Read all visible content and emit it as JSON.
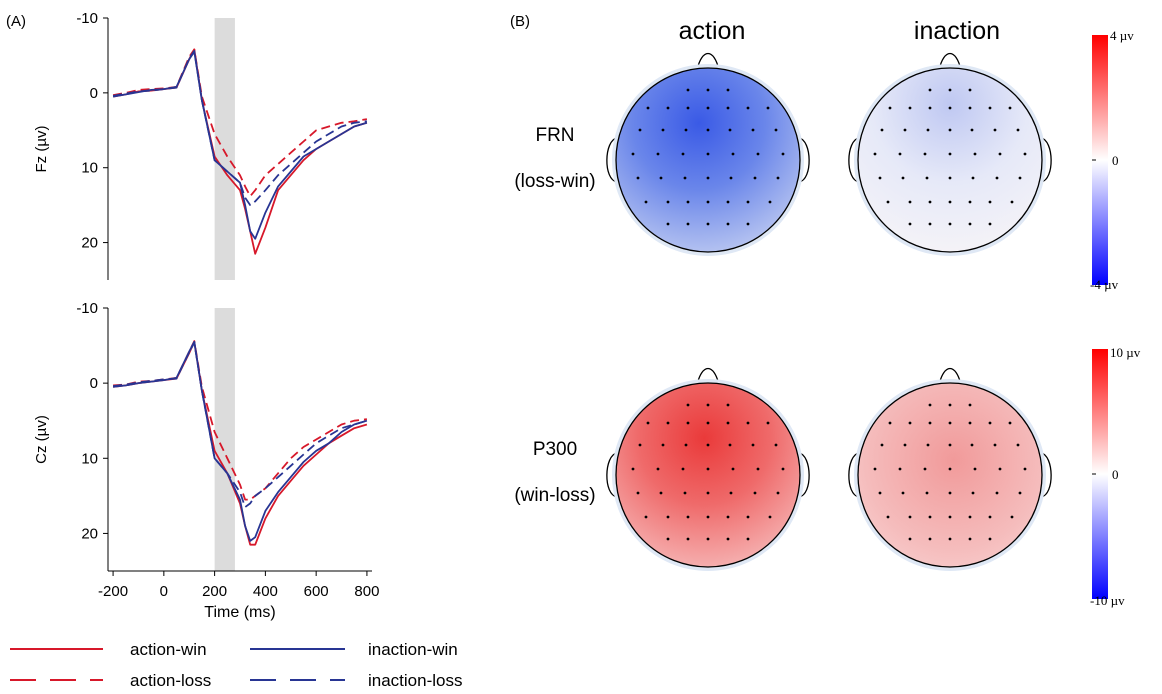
{
  "panel_labels": {
    "a": "(A)",
    "b": "(B)"
  },
  "colors": {
    "action": "#d7182a",
    "inaction": "#283593",
    "shade": "#dcdcdc"
  },
  "chart_data": [
    {
      "type": "line",
      "ylabel": "Fz (µv)",
      "xlim": [
        -220,
        820
      ],
      "ylim": [
        -10,
        25
      ],
      "y_inverted": true,
      "yticks": [
        -10,
        0,
        10,
        20
      ],
      "shaded_interval": [
        200,
        280
      ],
      "series": [
        {
          "name": "action-win",
          "color": "#d7182a",
          "dash": "solid",
          "x": [
            -200,
            -150,
            -100,
            -50,
            0,
            50,
            100,
            120,
            150,
            200,
            250,
            300,
            320,
            340,
            360,
            400,
            450,
            500,
            550,
            600,
            650,
            700,
            750,
            800
          ],
          "y": [
            0.5,
            0.2,
            -0.2,
            -0.3,
            -0.5,
            -0.7,
            -4.5,
            -5.8,
            1,
            8.5,
            11,
            13,
            15.5,
            18.5,
            21.5,
            18,
            13,
            11,
            9,
            7.5,
            6.5,
            5.5,
            4.5,
            4
          ]
        },
        {
          "name": "action-loss",
          "color": "#d7182a",
          "dash": "dashed",
          "x": [
            -200,
            -150,
            -100,
            -50,
            0,
            50,
            100,
            120,
            150,
            200,
            250,
            300,
            320,
            340,
            360,
            400,
            450,
            500,
            550,
            600,
            650,
            700,
            750,
            800
          ],
          "y": [
            0.3,
            0,
            -0.4,
            -0.5,
            -0.6,
            -0.8,
            -4.8,
            -5.8,
            0.5,
            5.5,
            8.5,
            11,
            12.5,
            13.8,
            13,
            11,
            9.5,
            8,
            6.5,
            5,
            4.5,
            4,
            3.8,
            3.5
          ]
        },
        {
          "name": "inaction-win",
          "color": "#283593",
          "dash": "solid",
          "x": [
            -200,
            -150,
            -100,
            -50,
            0,
            50,
            100,
            120,
            150,
            200,
            250,
            300,
            320,
            340,
            360,
            400,
            450,
            500,
            550,
            600,
            650,
            700,
            750,
            800
          ],
          "y": [
            0.5,
            0.2,
            -0.1,
            -0.4,
            -0.5,
            -0.8,
            -4.5,
            -5.5,
            1,
            9,
            10.5,
            12,
            15,
            18.5,
            19.5,
            16,
            12.5,
            10.5,
            8.5,
            7.5,
            6.5,
            5.5,
            4.5,
            4
          ]
        },
        {
          "name": "inaction-loss",
          "color": "#283593",
          "dash": "dashed",
          "x": [
            -200,
            -150,
            -100,
            -50,
            0,
            50,
            100,
            120,
            150,
            200,
            250,
            300,
            320,
            340,
            360,
            400,
            450,
            500,
            550,
            600,
            650,
            700,
            750,
            800
          ],
          "y": [
            0.4,
            0.1,
            -0.2,
            -0.3,
            -0.5,
            -0.7,
            -4.6,
            -5.6,
            1,
            9,
            10.5,
            12,
            14,
            15,
            14.5,
            13,
            11,
            9.5,
            8,
            6.5,
            5.5,
            4.5,
            4,
            3.8
          ]
        }
      ]
    },
    {
      "type": "line",
      "xlabel": "Time (ms)",
      "ylabel": "Cz (µv)",
      "xlim": [
        -220,
        820
      ],
      "ylim": [
        -10,
        25
      ],
      "y_inverted": true,
      "xticks": [
        -200,
        0,
        200,
        400,
        600,
        800
      ],
      "yticks": [
        -10,
        0,
        10,
        20
      ],
      "shaded_interval": [
        200,
        280
      ],
      "series": [
        {
          "name": "action-win",
          "color": "#d7182a",
          "dash": "solid",
          "x": [
            -200,
            -150,
            -100,
            -50,
            0,
            50,
            100,
            120,
            150,
            200,
            250,
            300,
            320,
            340,
            360,
            400,
            450,
            500,
            550,
            600,
            650,
            700,
            750,
            800
          ],
          "y": [
            0.5,
            0.3,
            0,
            -0.2,
            -0.4,
            -0.6,
            -4,
            -5.5,
            1,
            9,
            12,
            16,
            19,
            21.5,
            21.5,
            18,
            15,
            13,
            11,
            9.5,
            8,
            7,
            6,
            5.5
          ]
        },
        {
          "name": "action-loss",
          "color": "#d7182a",
          "dash": "dashed",
          "x": [
            -200,
            -150,
            -100,
            -50,
            0,
            50,
            100,
            120,
            150,
            200,
            250,
            300,
            320,
            340,
            360,
            400,
            450,
            500,
            550,
            600,
            650,
            700,
            750,
            800
          ],
          "y": [
            0.3,
            0.2,
            -0.2,
            -0.3,
            -0.5,
            -0.7,
            -4.2,
            -5.6,
            0.5,
            6.5,
            10,
            13.5,
            15.5,
            15.5,
            15,
            14,
            12,
            10,
            8.5,
            7.5,
            6.5,
            5.5,
            5,
            4.8
          ]
        },
        {
          "name": "inaction-win",
          "color": "#283593",
          "dash": "solid",
          "x": [
            -200,
            -150,
            -100,
            -50,
            0,
            50,
            100,
            120,
            150,
            200,
            250,
            300,
            320,
            340,
            360,
            400,
            450,
            500,
            550,
            600,
            650,
            700,
            750,
            800
          ],
          "y": [
            0.5,
            0.3,
            0,
            -0.2,
            -0.4,
            -0.7,
            -4.2,
            -5.5,
            1,
            10,
            12,
            15.5,
            19,
            21,
            20.5,
            17,
            14.5,
            12.5,
            10.5,
            9,
            8,
            6.5,
            5.5,
            5
          ]
        },
        {
          "name": "inaction-loss",
          "color": "#283593",
          "dash": "dashed",
          "x": [
            -200,
            -150,
            -100,
            -50,
            0,
            50,
            100,
            120,
            150,
            200,
            250,
            300,
            320,
            340,
            360,
            400,
            450,
            500,
            550,
            600,
            650,
            700,
            750,
            800
          ],
          "y": [
            0.4,
            0.2,
            -0.1,
            -0.3,
            -0.5,
            -0.6,
            -4.1,
            -5.4,
            1,
            10,
            12,
            14.5,
            16.5,
            16,
            15,
            14,
            12.5,
            11,
            9.5,
            8,
            7,
            6,
            5.5,
            5
          ]
        }
      ]
    },
    {
      "type": "heatmap",
      "title": "FRN (loss-win)",
      "row_labels": [
        "FRN",
        "(loss-win)"
      ],
      "columns": [
        "action",
        "inaction"
      ],
      "colorbar": {
        "max_label": "4 µv",
        "mid_label": "0",
        "min_label": "-4 µv",
        "range": [
          -4,
          4
        ]
      },
      "maps": [
        {
          "column": "action",
          "mean_value": -2.4,
          "peak_value": -3.4,
          "peak_location": "fronto-central"
        },
        {
          "column": "inaction",
          "mean_value": -0.4,
          "peak_value": -0.8,
          "peak_location": "frontal"
        }
      ]
    },
    {
      "type": "heatmap",
      "title": "P300 (win-loss)",
      "row_labels": [
        "P300",
        "(win-loss)"
      ],
      "columns": [
        "action",
        "inaction"
      ],
      "colorbar": {
        "max_label": "10 µv",
        "mid_label": "0",
        "min_label": "-10 µv",
        "range": [
          -10,
          10
        ]
      },
      "maps": [
        {
          "column": "action",
          "mean_value": 6.5,
          "peak_value": 8.5,
          "peak_location": "fronto-central"
        },
        {
          "column": "inaction",
          "mean_value": 2.8,
          "peak_value": 3.5,
          "peak_location": "central"
        }
      ]
    }
  ],
  "legend": {
    "items": [
      {
        "label": "action-win",
        "color": "#d7182a",
        "dash": "solid"
      },
      {
        "label": "inaction-win",
        "color": "#283593",
        "dash": "solid"
      },
      {
        "label": "action-loss",
        "color": "#d7182a",
        "dash": "dashed"
      },
      {
        "label": "inaction-loss",
        "color": "#283593",
        "dash": "dashed"
      }
    ]
  },
  "topomap_column_headers": [
    "action",
    "inaction"
  ]
}
